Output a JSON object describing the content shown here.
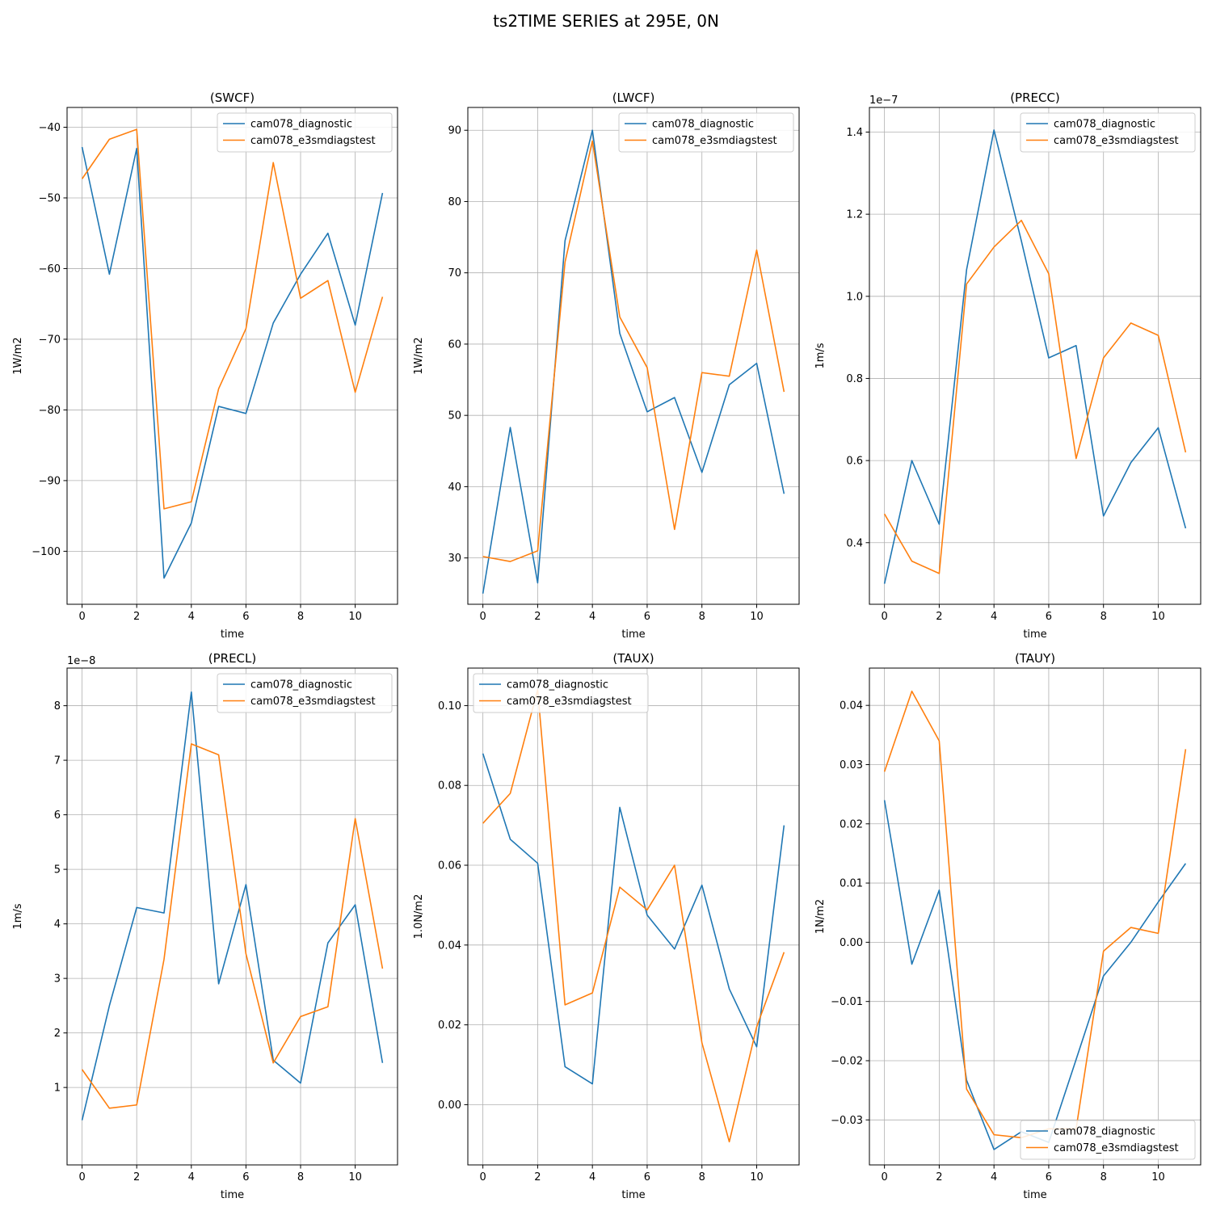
{
  "figure": {
    "title": "ts2TIME SERIES at 295E, 0N",
    "series_names": [
      "cam078_diagnostic",
      "cam078_e3smdiagstest"
    ],
    "colors": {
      "series0": "#1f77b4",
      "series1": "#ff7f0e",
      "grid": "#b0b0b0"
    }
  },
  "chart_data": [
    {
      "type": "line",
      "title": "(SWCF)",
      "xlabel": "time",
      "ylabel": "1W/m2",
      "offset_label": "",
      "y_inverted": true,
      "grid": true,
      "legend": "upper-right",
      "x": [
        0,
        1,
        2,
        3,
        4,
        5,
        6,
        7,
        8,
        9,
        10,
        11
      ],
      "xticks": [
        0,
        2,
        4,
        6,
        8,
        10
      ],
      "xticklabels": [
        "0",
        "2",
        "4",
        "6",
        "8",
        "10"
      ],
      "xlim": [
        -0.55,
        11.55
      ],
      "ylim": [
        -37.2,
        -107.5
      ],
      "yticks": [
        -100,
        -90,
        -80,
        -70,
        -60,
        -50,
        -40
      ],
      "yticklabels": [
        "−100",
        "−90",
        "−80",
        "−70",
        "−60",
        "−50",
        "−40"
      ],
      "series": [
        {
          "name": "cam078_diagnostic",
          "values": [
            -42.8,
            -60.8,
            -43.0,
            -103.8,
            -96.0,
            -79.5,
            -80.5,
            -67.7,
            -60.8,
            -55.0,
            -68.0,
            -49.3
          ]
        },
        {
          "name": "cam078_e3smdiagstest",
          "values": [
            -47.3,
            -41.7,
            -40.3,
            -94.0,
            -93.0,
            -77.0,
            -68.5,
            -45.0,
            -64.2,
            -61.7,
            -77.5,
            -64.0
          ]
        }
      ]
    },
    {
      "type": "line",
      "title": "(LWCF)",
      "xlabel": "time",
      "ylabel": "1W/m2",
      "offset_label": "",
      "y_inverted": true,
      "grid": true,
      "legend": "upper-right",
      "x": [
        0,
        1,
        2,
        3,
        4,
        5,
        6,
        7,
        8,
        9,
        10,
        11
      ],
      "xticks": [
        0,
        2,
        4,
        6,
        8,
        10
      ],
      "xticklabels": [
        "0",
        "2",
        "4",
        "6",
        "8",
        "10"
      ],
      "xlim": [
        -0.55,
        11.55
      ],
      "ylim": [
        93.2,
        23.5
      ],
      "yticks": [
        30,
        40,
        50,
        60,
        70,
        80,
        90
      ],
      "yticklabels": [
        "30",
        "40",
        "50",
        "60",
        "70",
        "80",
        "90"
      ],
      "series": [
        {
          "name": "cam078_diagnostic",
          "values": [
            25.0,
            48.3,
            26.5,
            74.5,
            90.0,
            61.5,
            50.5,
            52.5,
            42.0,
            54.3,
            57.3,
            39.0
          ]
        },
        {
          "name": "cam078_e3smdiagstest",
          "values": [
            30.2,
            29.5,
            31.0,
            71.5,
            88.5,
            63.8,
            56.7,
            34.0,
            56.0,
            55.5,
            73.2,
            53.3
          ]
        }
      ]
    },
    {
      "type": "line",
      "title": "(PRECC)",
      "xlabel": "time",
      "ylabel": "1m/s",
      "offset_label": "1e−7",
      "y_inverted": true,
      "grid": true,
      "legend": "upper-right",
      "x": [
        0,
        1,
        2,
        3,
        4,
        5,
        6,
        7,
        8,
        9,
        10,
        11
      ],
      "xticks": [
        0,
        2,
        4,
        6,
        8,
        10
      ],
      "xticklabels": [
        "0",
        "2",
        "4",
        "6",
        "8",
        "10"
      ],
      "xlim": [
        -0.55,
        11.55
      ],
      "ylim": [
        1.46,
        0.25
      ],
      "yticks": [
        0.4,
        0.6,
        0.8,
        1.0,
        1.2,
        1.4
      ],
      "yticklabels": [
        "0.4",
        "0.6",
        "0.8",
        "1.0",
        "1.2",
        "1.4"
      ],
      "series": [
        {
          "name": "cam078_diagnostic",
          "values": [
            0.3,
            0.6,
            0.445,
            1.065,
            1.405,
            1.135,
            0.85,
            0.88,
            0.465,
            0.595,
            0.68,
            0.435
          ]
        },
        {
          "name": "cam078_e3smdiagstest",
          "values": [
            0.47,
            0.355,
            0.325,
            1.03,
            1.12,
            1.185,
            1.055,
            0.605,
            0.85,
            0.935,
            0.905,
            0.62
          ]
        }
      ]
    },
    {
      "type": "line",
      "title": "(PRECL)",
      "xlabel": "time",
      "ylabel": "1m/s",
      "offset_label": "1e−8",
      "y_inverted": true,
      "grid": true,
      "legend": "upper-right",
      "x": [
        0,
        1,
        2,
        3,
        4,
        5,
        6,
        7,
        8,
        9,
        10,
        11
      ],
      "xticks": [
        0,
        2,
        4,
        6,
        8,
        10
      ],
      "xticklabels": [
        "0",
        "2",
        "4",
        "6",
        "8",
        "10"
      ],
      "xlim": [
        -0.55,
        11.55
      ],
      "ylim": [
        8.69,
        -0.42
      ],
      "yticks": [
        1,
        2,
        3,
        4,
        5,
        6,
        7,
        8
      ],
      "yticklabels": [
        "1",
        "2",
        "3",
        "4",
        "5",
        "6",
        "7",
        "8"
      ],
      "series": [
        {
          "name": "cam078_diagnostic",
          "values": [
            0.4,
            2.5,
            4.3,
            4.2,
            8.25,
            2.9,
            4.72,
            1.5,
            1.08,
            3.65,
            4.35,
            1.45
          ]
        },
        {
          "name": "cam078_e3smdiagstest",
          "values": [
            1.33,
            0.62,
            0.68,
            3.35,
            7.3,
            7.1,
            3.45,
            1.45,
            2.3,
            2.48,
            5.93,
            3.18
          ]
        }
      ]
    },
    {
      "type": "line",
      "title": "(TAUX)",
      "xlabel": "time",
      "ylabel": "1.0N/m2",
      "offset_label": "",
      "y_inverted": true,
      "grid": true,
      "legend": "upper-left",
      "x": [
        0,
        1,
        2,
        3,
        4,
        5,
        6,
        7,
        8,
        9,
        10,
        11
      ],
      "xticks": [
        0,
        2,
        4,
        6,
        8,
        10
      ],
      "xticklabels": [
        "0",
        "2",
        "4",
        "6",
        "8",
        "10"
      ],
      "xlim": [
        -0.55,
        11.55
      ],
      "ylim": [
        0.1094,
        -0.0151
      ],
      "yticks": [
        0.0,
        0.02,
        0.04,
        0.06,
        0.08,
        0.1
      ],
      "yticklabels": [
        "0.00",
        "0.02",
        "0.04",
        "0.06",
        "0.08",
        "0.10"
      ],
      "series": [
        {
          "name": "cam078_diagnostic",
          "values": [
            0.088,
            0.0665,
            0.0605,
            0.0095,
            0.0052,
            0.0745,
            0.0475,
            0.039,
            0.055,
            0.029,
            0.0145,
            0.07
          ]
        },
        {
          "name": "cam078_e3smdiagstest",
          "values": [
            0.0705,
            0.078,
            0.104,
            0.025,
            0.028,
            0.0545,
            0.0488,
            0.06,
            0.0155,
            -0.0093,
            0.0195,
            0.0382
          ]
        }
      ]
    },
    {
      "type": "line",
      "title": "(TAUY)",
      "xlabel": "time",
      "ylabel": "1N/m2",
      "offset_label": "",
      "y_inverted": true,
      "grid": true,
      "legend": "lower-right",
      "x": [
        0,
        1,
        2,
        3,
        4,
        5,
        6,
        7,
        8,
        9,
        10,
        11
      ],
      "xticks": [
        0,
        2,
        4,
        6,
        8,
        10
      ],
      "xticklabels": [
        "0",
        "2",
        "4",
        "6",
        "8",
        "10"
      ],
      "xlim": [
        -0.55,
        11.55
      ],
      "ylim": [
        0.0463,
        -0.0376
      ],
      "yticks": [
        -0.03,
        -0.02,
        -0.01,
        0.0,
        0.01,
        0.02,
        0.03,
        0.04
      ],
      "yticklabels": [
        "−0.03",
        "−0.02",
        "−0.01",
        "0.00",
        "0.01",
        "0.02",
        "0.03",
        "0.04"
      ],
      "series": [
        {
          "name": "cam078_diagnostic",
          "values": [
            0.024,
            -0.0037,
            0.0088,
            -0.0233,
            -0.035,
            -0.032,
            -0.0338,
            -0.0198,
            -0.0057,
            0.0,
            0.0068,
            0.0133
          ]
        },
        {
          "name": "cam078_e3smdiagstest",
          "values": [
            0.0288,
            0.0424,
            0.034,
            -0.0248,
            -0.0325,
            -0.033,
            -0.0315,
            -0.0315,
            -0.0015,
            0.0025,
            0.0015,
            0.0326
          ]
        }
      ]
    }
  ]
}
